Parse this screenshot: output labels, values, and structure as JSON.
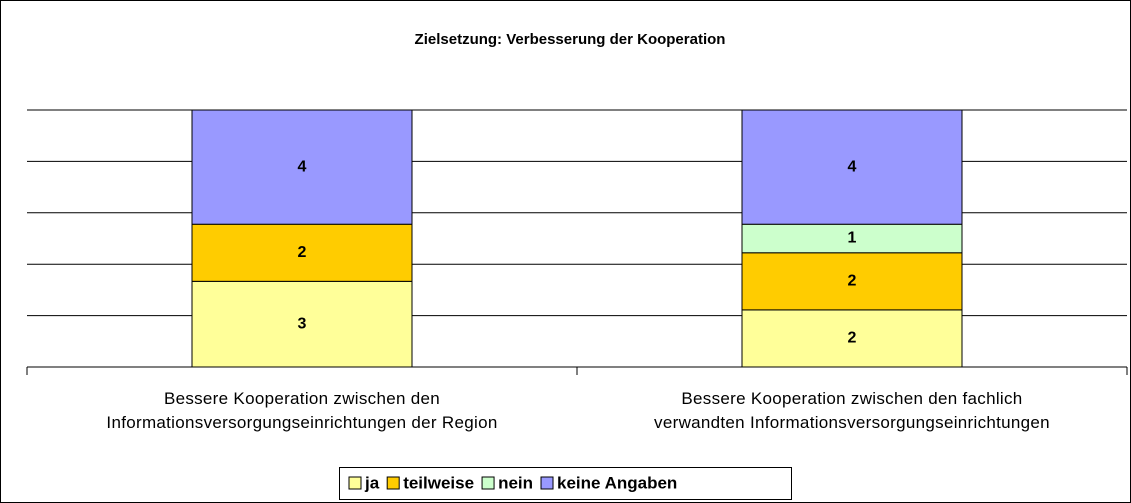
{
  "chart_data": {
    "type": "stacked_bar",
    "title": "Zielsetzung: Verbesserung der Kooperation",
    "categories": [
      "Bessere Kooperation zwischen den\nInformationsversorgungseinrichtungen der Region",
      "Bessere Kooperation zwischen den fachlich\nverwandten Informationsversorgungseinrichtungen"
    ],
    "series": [
      {
        "name": "ja",
        "color": "#ffff99",
        "values": [
          3,
          2
        ]
      },
      {
        "name": "teilweise",
        "color": "#ffcc00",
        "values": [
          2,
          2
        ]
      },
      {
        "name": "nein",
        "color": "#ccffcc",
        "values": [
          null,
          1
        ]
      },
      {
        "name": "keine Angaben",
        "color": "#9999ff",
        "values": [
          4,
          4
        ]
      }
    ],
    "ylim": [
      0,
      9
    ],
    "yticks": [
      0,
      1.8,
      3.6,
      5.4,
      7.2,
      9
    ],
    "grid": true,
    "legend": "bottom"
  }
}
